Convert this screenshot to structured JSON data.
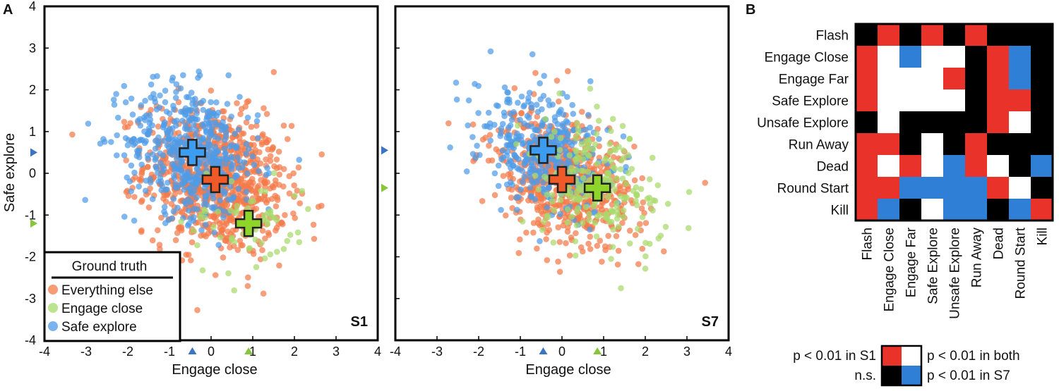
{
  "panel_a": {
    "label": "A",
    "legend": {
      "title": "Ground truth",
      "items": [
        {
          "label": "Everything else",
          "color": "#f47a4a"
        },
        {
          "label": "Engage close",
          "color": "#a8d96b"
        },
        {
          "label": "Safe explore",
          "color": "#4d9be8"
        }
      ]
    },
    "plots": [
      {
        "label": "S1",
        "xlabel": "Engage close",
        "ylabel": "Safe explore"
      },
      {
        "label": "S7",
        "xlabel": "Engage close",
        "ylabel": ""
      }
    ]
  },
  "panel_b": {
    "label": "B"
  },
  "chart_data": [
    {
      "type": "scatter",
      "title": "S1",
      "xlabel": "Engage close",
      "ylabel": "Safe explore",
      "xlim": [
        -4,
        4
      ],
      "ylim": [
        -4,
        4
      ],
      "xticks": [
        -4,
        -3,
        -2,
        -1,
        0,
        1,
        2,
        3,
        4
      ],
      "yticks": [
        -4,
        -3,
        -2,
        -1,
        0,
        1,
        2,
        3,
        4
      ],
      "series": [
        {
          "name": "Everything else",
          "color": "#f47a4a",
          "center": [
            0.1,
            -0.15
          ],
          "spread": [
            0.85,
            0.85
          ],
          "count": 900,
          "corr": -0.2
        },
        {
          "name": "Engage close",
          "color": "#a8d96b",
          "center": [
            0.9,
            -1.2
          ],
          "spread": [
            0.8,
            0.7
          ],
          "count": 60,
          "corr": -0.1
        },
        {
          "name": "Safe explore",
          "color": "#4d9be8",
          "center": [
            -0.45,
            0.5
          ],
          "spread": [
            0.8,
            0.8
          ],
          "count": 500,
          "corr": -0.2
        }
      ],
      "centroids": [
        {
          "name": "Safe explore",
          "x": -0.45,
          "y": 0.5,
          "color": "#3c9cf0"
        },
        {
          "name": "Everything else",
          "x": 0.1,
          "y": -0.15,
          "color": "#f05a28"
        },
        {
          "name": "Engage close",
          "x": 0.9,
          "y": -1.2,
          "color": "#8fd42a"
        }
      ],
      "axis_markers": [
        {
          "axis": "x",
          "value": -0.45,
          "color": "#3b74c2"
        },
        {
          "axis": "x",
          "value": 0.9,
          "color": "#86c63a"
        },
        {
          "axis": "y",
          "value": 0.5,
          "color": "#3b74c2"
        },
        {
          "axis": "y",
          "value": -1.2,
          "color": "#86c63a"
        }
      ]
    },
    {
      "type": "scatter",
      "title": "S7",
      "xlabel": "Engage close",
      "ylabel": "",
      "xlim": [
        -4,
        4
      ],
      "ylim": [
        -4,
        4
      ],
      "xticks": [
        -4,
        -3,
        -2,
        -1,
        0,
        1,
        2,
        3,
        4
      ],
      "yticks": [
        -4,
        -3,
        -2,
        -1,
        0,
        1,
        2,
        3,
        4
      ],
      "series": [
        {
          "name": "Everything else",
          "color": "#f47a4a",
          "center": [
            0.0,
            -0.15
          ],
          "spread": [
            0.85,
            0.8
          ],
          "count": 650,
          "corr": -0.35
        },
        {
          "name": "Engage close",
          "color": "#a8d96b",
          "center": [
            0.85,
            -0.35
          ],
          "spread": [
            0.75,
            0.75
          ],
          "count": 220,
          "corr": -0.35
        },
        {
          "name": "Safe explore",
          "color": "#4d9be8",
          "center": [
            -0.45,
            0.55
          ],
          "spread": [
            0.75,
            0.75
          ],
          "count": 380,
          "corr": -0.3
        }
      ],
      "centroids": [
        {
          "name": "Safe explore",
          "x": -0.45,
          "y": 0.55,
          "color": "#3c9cf0"
        },
        {
          "name": "Everything else",
          "x": 0.0,
          "y": -0.15,
          "color": "#f05a28"
        },
        {
          "name": "Engage close",
          "x": 0.85,
          "y": -0.35,
          "color": "#8fd42a"
        }
      ],
      "axis_markers": [
        {
          "axis": "x",
          "value": -0.45,
          "color": "#3b74c2"
        },
        {
          "axis": "x",
          "value": 0.85,
          "color": "#86c63a"
        },
        {
          "axis": "y",
          "value": 0.55,
          "color": "#3b74c2"
        },
        {
          "axis": "y",
          "value": -0.35,
          "color": "#86c63a"
        }
      ]
    },
    {
      "type": "heatmap",
      "rows": [
        "Flash",
        "Engage Close",
        "Engage Far",
        "Safe Explore",
        "Unsafe Explore",
        "Run Away",
        "Dead",
        "Round Start",
        "Kill"
      ],
      "columns": [
        "Flash",
        "Engage Close",
        "Engage Far",
        "Safe Explore",
        "Unsafe Explore",
        "Run Away",
        "Dead",
        "Round Start",
        "Kill"
      ],
      "legend": [
        {
          "code": "R",
          "label": "p < 0.01 in S1",
          "color": "#e8322a"
        },
        {
          "code": "W",
          "label": "p < 0.01 in both",
          "color": "#ffffff"
        },
        {
          "code": "K",
          "label": "n.s.",
          "color": "#000000"
        },
        {
          "code": "B",
          "label": "p < 0.01 in S7",
          "color": "#2f7fd6"
        }
      ],
      "cells": [
        [
          "K",
          "R",
          "K",
          "R",
          "K",
          "R",
          "K",
          "K",
          "K"
        ],
        [
          "R",
          "W",
          "B",
          "W",
          "W",
          "K",
          "R",
          "B",
          "K"
        ],
        [
          "R",
          "W",
          "W",
          "W",
          "R",
          "K",
          "R",
          "B",
          "K"
        ],
        [
          "R",
          "W",
          "W",
          "W",
          "W",
          "K",
          "R",
          "R",
          "K"
        ],
        [
          "K",
          "W",
          "K",
          "K",
          "K",
          "K",
          "R",
          "W",
          "K"
        ],
        [
          "R",
          "R",
          "K",
          "W",
          "K",
          "R",
          "K",
          "K",
          "K"
        ],
        [
          "R",
          "W",
          "R",
          "W",
          "B",
          "R",
          "W",
          "K",
          "B"
        ],
        [
          "R",
          "R",
          "B",
          "B",
          "B",
          "B",
          "R",
          "W",
          "K"
        ],
        [
          "R",
          "B",
          "K",
          "W",
          "B",
          "B",
          "K",
          "B",
          "R"
        ]
      ]
    }
  ]
}
